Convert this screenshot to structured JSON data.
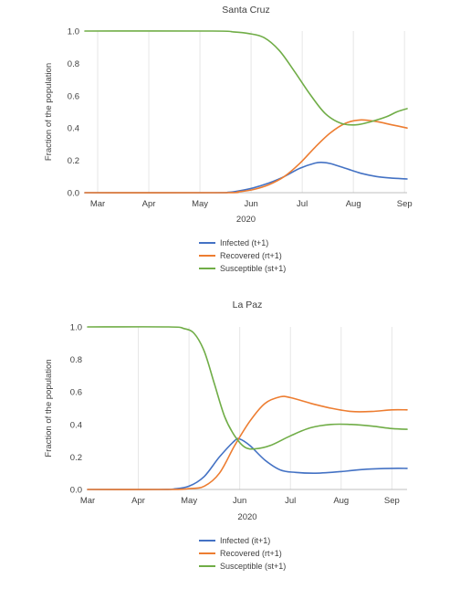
{
  "chart_data": [
    {
      "type": "line",
      "title": "Santa Cruz",
      "xlabel": "2020",
      "ylabel": "Fraction of the population",
      "ylim": [
        0,
        1.0
      ],
      "yticks": [
        "0.0",
        "0.2",
        "0.4",
        "0.6",
        "0.8",
        "1.0"
      ],
      "xlim": [
        0,
        6.3
      ],
      "xticks": [
        {
          "label": "Mar",
          "x": 0.25
        },
        {
          "label": "Apr",
          "x": 1.25
        },
        {
          "label": "May",
          "x": 2.25
        },
        {
          "label": "Jun",
          "x": 3.25
        },
        {
          "label": "Jul",
          "x": 4.25
        },
        {
          "label": "Aug",
          "x": 5.25
        },
        {
          "label": "Sep",
          "x": 6.25
        }
      ],
      "grid": "vertical",
      "legend_position": "bottom",
      "series": [
        {
          "name": "Infected (t+1)",
          "color": "#4472C4",
          "points": [
            [
              0,
              0
            ],
            [
              2.5,
              0
            ],
            [
              2.8,
              0.002
            ],
            [
              3.0,
              0.01
            ],
            [
              3.3,
              0.03
            ],
            [
              3.6,
              0.06
            ],
            [
              3.9,
              0.1
            ],
            [
              4.2,
              0.15
            ],
            [
              4.5,
              0.183
            ],
            [
              4.65,
              0.187
            ],
            [
              4.8,
              0.18
            ],
            [
              5.1,
              0.15
            ],
            [
              5.4,
              0.12
            ],
            [
              5.7,
              0.1
            ],
            [
              6.0,
              0.09
            ],
            [
              6.3,
              0.085
            ]
          ]
        },
        {
          "name": "Recovered (rt+1)",
          "color": "#ED7D31",
          "points": [
            [
              0,
              0
            ],
            [
              2.7,
              0
            ],
            [
              3.0,
              0.005
            ],
            [
              3.3,
              0.02
            ],
            [
              3.6,
              0.05
            ],
            [
              3.9,
              0.1
            ],
            [
              4.2,
              0.18
            ],
            [
              4.5,
              0.28
            ],
            [
              4.8,
              0.37
            ],
            [
              5.1,
              0.43
            ],
            [
              5.4,
              0.45
            ],
            [
              5.7,
              0.44
            ],
            [
              6.0,
              0.42
            ],
            [
              6.3,
              0.4
            ]
          ]
        },
        {
          "name": "Susceptible (st+1)",
          "color": "#70AD47",
          "points": [
            [
              0,
              1.0
            ],
            [
              2.5,
              1.0
            ],
            [
              2.9,
              0.995
            ],
            [
              3.2,
              0.985
            ],
            [
              3.5,
              0.96
            ],
            [
              3.8,
              0.88
            ],
            [
              4.1,
              0.75
            ],
            [
              4.4,
              0.61
            ],
            [
              4.7,
              0.49
            ],
            [
              5.0,
              0.43
            ],
            [
              5.3,
              0.42
            ],
            [
              5.6,
              0.44
            ],
            [
              5.9,
              0.47
            ],
            [
              6.1,
              0.5
            ],
            [
              6.3,
              0.52
            ]
          ]
        }
      ]
    },
    {
      "type": "line",
      "title": "La Paz",
      "xlabel": "2020",
      "ylabel": "Fraction of the population",
      "ylim": [
        0,
        1.0
      ],
      "yticks": [
        "0.0",
        "0.2",
        "0.4",
        "0.6",
        "0.8",
        "1.0"
      ],
      "xlim": [
        0,
        6.3
      ],
      "xticks": [
        {
          "label": "Mar",
          "x": 0.0
        },
        {
          "label": "Apr",
          "x": 1.0
        },
        {
          "label": "May",
          "x": 2.0
        },
        {
          "label": "Jun",
          "x": 3.0
        },
        {
          "label": "Jul",
          "x": 4.0
        },
        {
          "label": "Aug",
          "x": 5.0
        },
        {
          "label": "Sep",
          "x": 6.0
        }
      ],
      "grid": "vertical",
      "legend_position": "bottom",
      "series": [
        {
          "name": "Infected (it+1)",
          "color": "#4472C4",
          "points": [
            [
              0,
              0
            ],
            [
              1.4,
              0
            ],
            [
              1.7,
              0.003
            ],
            [
              2.0,
              0.02
            ],
            [
              2.3,
              0.08
            ],
            [
              2.6,
              0.2
            ],
            [
              2.9,
              0.3
            ],
            [
              3.0,
              0.31
            ],
            [
              3.2,
              0.27
            ],
            [
              3.5,
              0.18
            ],
            [
              3.8,
              0.12
            ],
            [
              4.1,
              0.105
            ],
            [
              4.5,
              0.1
            ],
            [
              5.0,
              0.11
            ],
            [
              5.5,
              0.125
            ],
            [
              6.0,
              0.13
            ],
            [
              6.3,
              0.13
            ]
          ]
        },
        {
          "name": "Recovered (rt+1)",
          "color": "#ED7D31",
          "points": [
            [
              0,
              0
            ],
            [
              1.6,
              0
            ],
            [
              2.0,
              0.005
            ],
            [
              2.3,
              0.02
            ],
            [
              2.6,
              0.1
            ],
            [
              2.9,
              0.27
            ],
            [
              3.2,
              0.42
            ],
            [
              3.5,
              0.53
            ],
            [
              3.8,
              0.57
            ],
            [
              4.0,
              0.565
            ],
            [
              4.4,
              0.53
            ],
            [
              4.8,
              0.5
            ],
            [
              5.2,
              0.48
            ],
            [
              5.6,
              0.48
            ],
            [
              6.0,
              0.49
            ],
            [
              6.3,
              0.49
            ]
          ]
        },
        {
          "name": "Susceptible (st+1)",
          "color": "#70AD47",
          "points": [
            [
              0,
              1.0
            ],
            [
              1.6,
              1.0
            ],
            [
              1.9,
              0.99
            ],
            [
              2.1,
              0.96
            ],
            [
              2.3,
              0.85
            ],
            [
              2.5,
              0.65
            ],
            [
              2.7,
              0.45
            ],
            [
              2.9,
              0.33
            ],
            [
              3.1,
              0.26
            ],
            [
              3.3,
              0.25
            ],
            [
              3.6,
              0.27
            ],
            [
              4.0,
              0.33
            ],
            [
              4.4,
              0.38
            ],
            [
              4.8,
              0.4
            ],
            [
              5.2,
              0.4
            ],
            [
              5.6,
              0.39
            ],
            [
              6.0,
              0.375
            ],
            [
              6.3,
              0.37
            ]
          ]
        }
      ]
    }
  ]
}
